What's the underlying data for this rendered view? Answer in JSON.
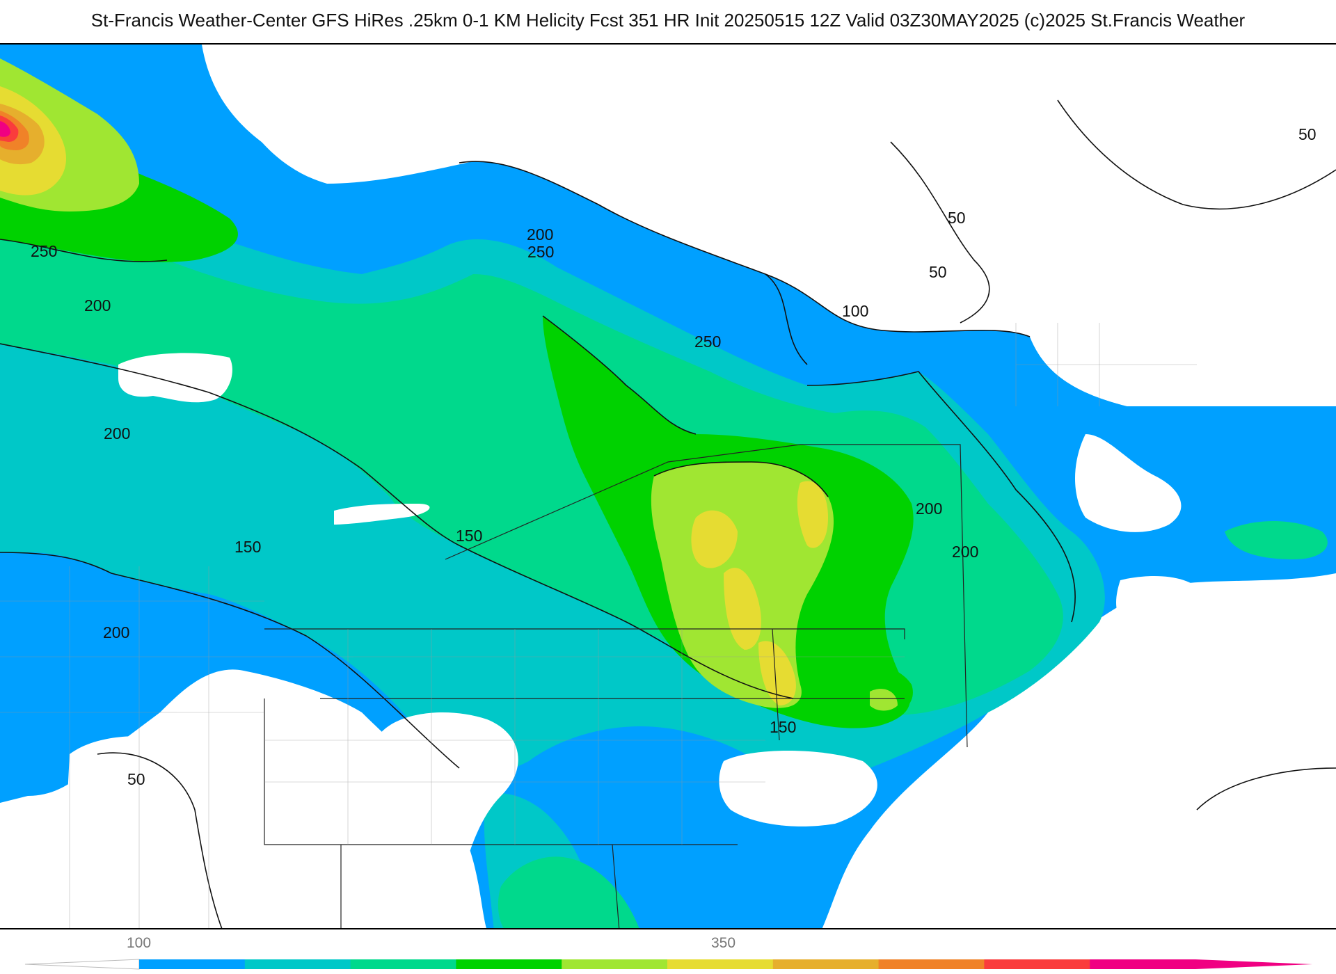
{
  "title": "St-Francis Weather-Center GFS HiRes .25km 0-1 KM Helicity Fcst 351 HR Init 20250515 12Z  Valid 03Z30MAY2025    (c)2025 St.Francis Weather",
  "contour_labels": [
    "50",
    "50",
    "50",
    "50",
    "100",
    "150",
    "150",
    "150",
    "200",
    "200",
    "200",
    "200",
    "200",
    "200",
    "250",
    "250",
    "250"
  ],
  "colorbar": {
    "tick_labels": [
      "100",
      "350"
    ],
    "colors": [
      "#00a0ff",
      "#00c8c8",
      "#00d98c",
      "#00d200",
      "#a0e632",
      "#e6dc32",
      "#e6af2d",
      "#f08228",
      "#fa3c3c",
      "#f00082"
    ]
  },
  "fills": {
    "bg": "#ffffff",
    "l100": "#00a0ff",
    "l150": "#00c8c8",
    "l200": "#00d98c",
    "l250": "#00d200",
    "l300": "#a0e632",
    "l350": "#e6dc32",
    "l400": "#e6af2d",
    "l450": "#f08228",
    "l500": "#fa3c3c",
    "l550": "#f00082"
  }
}
